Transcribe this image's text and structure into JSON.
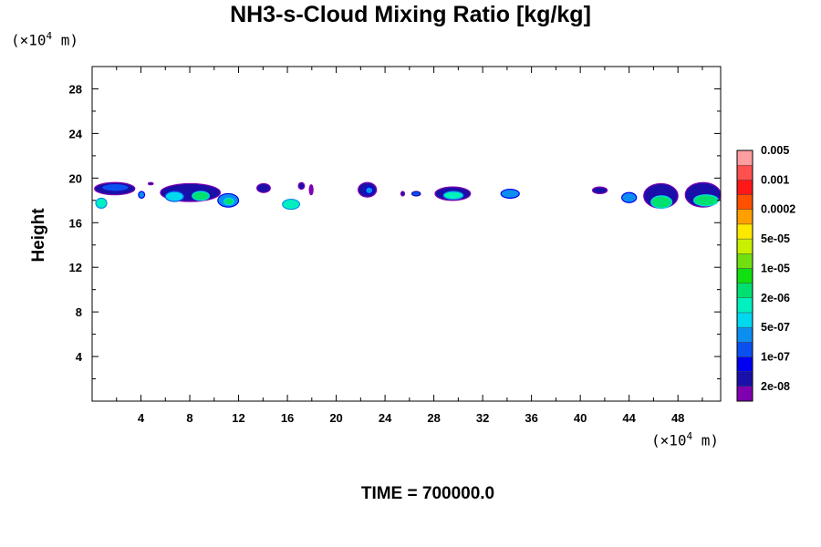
{
  "chart_data": {
    "type": "heatmap",
    "title": "NH3-s-Cloud Mixing Ratio [kg/kg]",
    "ylabel": "Height",
    "xunit": "(×10",
    "xunit_exp": "4",
    "xunit_tail": " m)",
    "yunit": "(×10",
    "yunit_exp": "4",
    "yunit_tail": " m)",
    "xlim": [
      0,
      51.5
    ],
    "ylim": [
      0,
      30
    ],
    "x_ticks": [
      4,
      8,
      12,
      16,
      20,
      24,
      28,
      32,
      36,
      40,
      44,
      48
    ],
    "y_ticks": [
      4,
      8,
      12,
      16,
      20,
      24,
      28
    ],
    "time_label": "TIME = 700000.0",
    "colorbar": {
      "colors": [
        "#7f00b0",
        "#1a0fa8",
        "#0000f0",
        "#0a50f0",
        "#0c8ef0",
        "#00d8f0",
        "#00f0c0",
        "#00e070",
        "#10e010",
        "#70e010",
        "#c8f000",
        "#ffe800",
        "#ffa000",
        "#ff5000",
        "#ff1818",
        "#ff5050",
        "#ff9ea0"
      ],
      "labels": [
        "2e-08",
        "1e-07",
        "5e-07",
        "2e-06",
        "1e-05",
        "5e-05",
        "0.0002",
        "0.001",
        "0.005"
      ]
    },
    "cloud_cells": [
      {
        "x": [
          0.2,
          3.5
        ],
        "y": [
          18.5,
          19.6
        ],
        "level": 1
      },
      {
        "x": [
          0.8,
          3.0
        ],
        "y": [
          18.8,
          19.5
        ],
        "level": 3
      },
      {
        "x": [
          0.3,
          1.2
        ],
        "y": [
          17.3,
          18.2
        ],
        "level": 6
      },
      {
        "x": [
          3.8,
          4.3
        ],
        "y": [
          18.2,
          18.8
        ],
        "level": 4
      },
      {
        "x": [
          4.6,
          5.0
        ],
        "y": [
          19.4,
          19.6
        ],
        "level": 1
      },
      {
        "x": [
          5.6,
          10.5
        ],
        "y": [
          17.9,
          19.5
        ],
        "level": 1
      },
      {
        "x": [
          6.0,
          7.5
        ],
        "y": [
          17.9,
          18.8
        ],
        "level": 5
      },
      {
        "x": [
          8.2,
          9.6
        ],
        "y": [
          18.0,
          18.8
        ],
        "level": 7
      },
      {
        "x": [
          10.3,
          12.0
        ],
        "y": [
          17.4,
          18.6
        ],
        "level": 4
      },
      {
        "x": [
          10.8,
          11.6
        ],
        "y": [
          17.6,
          18.2
        ],
        "level": 7
      },
      {
        "x": [
          13.5,
          14.6
        ],
        "y": [
          18.7,
          19.5
        ],
        "level": 1
      },
      {
        "x": [
          15.6,
          17.0
        ],
        "y": [
          17.2,
          18.1
        ],
        "level": 6
      },
      {
        "x": [
          16.9,
          17.4
        ],
        "y": [
          19.0,
          19.6
        ],
        "level": 1
      },
      {
        "x": [
          17.8,
          18.1
        ],
        "y": [
          18.5,
          19.4
        ],
        "level": 0
      },
      {
        "x": [
          21.8,
          23.3
        ],
        "y": [
          18.3,
          19.6
        ],
        "level": 1
      },
      {
        "x": [
          22.4,
          23.0
        ],
        "y": [
          18.6,
          19.2
        ],
        "level": 4
      },
      {
        "x": [
          25.3,
          25.6
        ],
        "y": [
          18.4,
          18.8
        ],
        "level": 1
      },
      {
        "x": [
          26.2,
          26.9
        ],
        "y": [
          18.4,
          18.8
        ],
        "level": 3
      },
      {
        "x": [
          28.1,
          31.0
        ],
        "y": [
          18.0,
          19.2
        ],
        "level": 1
      },
      {
        "x": [
          28.8,
          30.4
        ],
        "y": [
          18.1,
          18.8
        ],
        "level": 6
      },
      {
        "x": [
          33.5,
          35.0
        ],
        "y": [
          18.2,
          19.0
        ],
        "level": 4
      },
      {
        "x": [
          41.0,
          42.2
        ],
        "y": [
          18.6,
          19.2
        ],
        "level": 1
      },
      {
        "x": [
          43.4,
          44.6
        ],
        "y": [
          17.8,
          18.7
        ],
        "level": 4
      },
      {
        "x": [
          45.2,
          48.0
        ],
        "y": [
          17.3,
          19.5
        ],
        "level": 1
      },
      {
        "x": [
          45.8,
          47.5
        ],
        "y": [
          17.3,
          18.4
        ],
        "level": 7
      },
      {
        "x": [
          48.6,
          51.5
        ],
        "y": [
          17.4,
          19.6
        ],
        "level": 1
      },
      {
        "x": [
          49.3,
          51.3
        ],
        "y": [
          17.5,
          18.5
        ],
        "level": 7
      }
    ]
  }
}
